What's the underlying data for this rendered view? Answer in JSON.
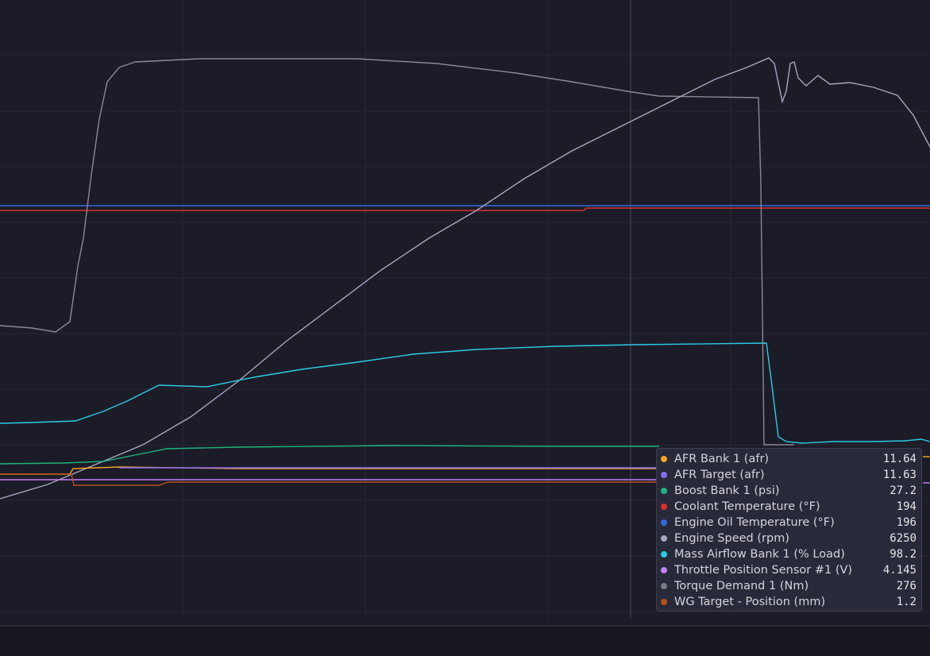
{
  "tooltip": {
    "items": [
      {
        "name": "AFR Bank 1 (afr)",
        "color": "#f5a623",
        "value": 11.64
      },
      {
        "name": "AFR Target (afr)",
        "color": "#8b6cf0",
        "value": 11.63
      },
      {
        "name": "Boost Bank 1 (psi)",
        "color": "#1fb57d",
        "value": 27.2
      },
      {
        "name": "Coolant Temperature (°F)",
        "color": "#d9302f",
        "value": 194
      },
      {
        "name": "Engine Oil Temperature (°F)",
        "color": "#3569e0",
        "value": 196
      },
      {
        "name": "Engine Speed (rpm)",
        "color": "#a7a7bd",
        "value": 6250
      },
      {
        "name": "Mass Airflow Bank 1 (% Load)",
        "color": "#2ccbe3",
        "value": 98.2
      },
      {
        "name": "Throttle Position Sensor #1 (V)",
        "color": "#c382f5",
        "value": 4.145
      },
      {
        "name": "Torque Demand 1 (Nm)",
        "color": "#7c7c84",
        "value": 276
      },
      {
        "name": "WG Target - Position (mm)",
        "color": "#b4501c",
        "value": 1.2
      }
    ]
  }
}
